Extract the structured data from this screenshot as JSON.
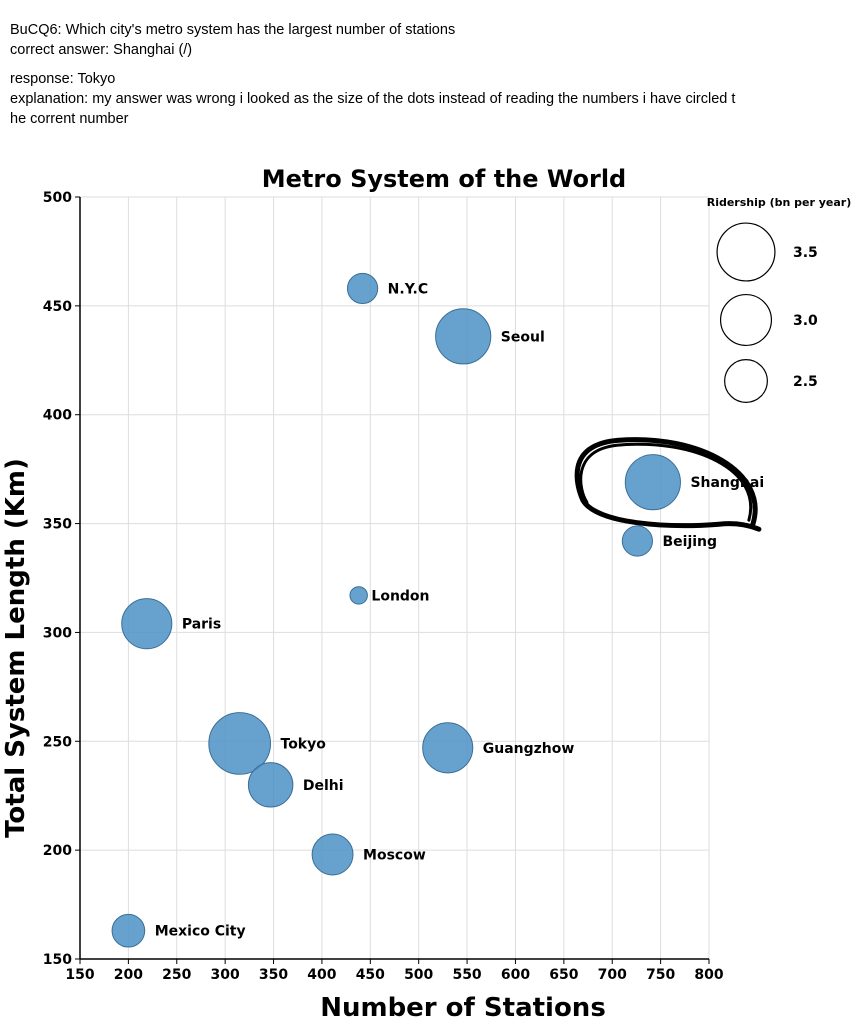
{
  "note": {
    "question": "BuCQ6: Which city's metro system has the largest number of stations",
    "correct_answer": "correct answer: Shanghai (/)",
    "response": "response: Tokyo",
    "explanation": "explanation: my answer was wrong i looked as the size of the dots instead of reading the numbers i have circled t",
    "explanation_cont": "he corrent number"
  },
  "colors": {
    "point_fill": "#4c92c7",
    "point_stroke": "#3a6f96",
    "grid": "#dddddd",
    "axis": "#000000",
    "annotation": "#000000"
  },
  "chart_data": {
    "type": "scatter",
    "title": "Metro System of the World",
    "xlabel": "Number of Stations",
    "ylabel": "Total System Length (Km)",
    "xlim": [
      150,
      800
    ],
    "ylim": [
      150,
      500
    ],
    "xticks": [
      150,
      200,
      250,
      300,
      350,
      400,
      450,
      500,
      550,
      600,
      650,
      700,
      750,
      800
    ],
    "yticks": [
      150,
      200,
      250,
      300,
      350,
      400,
      450,
      500
    ],
    "grid": true,
    "size_legend": {
      "title": "Ridership (bn per year)",
      "placement": "top-right",
      "entries": [
        {
          "label": "3.5",
          "value": 3.5
        },
        {
          "label": "3.0",
          "value": 3.0
        },
        {
          "label": "2.5",
          "value": 2.5
        }
      ]
    },
    "points": [
      {
        "name": "N.Y.C",
        "x": 442,
        "y": 458,
        "ridership": 1.9,
        "label_side": "right"
      },
      {
        "name": "Seoul",
        "x": 546,
        "y": 436,
        "ridership": 3.3,
        "label_side": "right"
      },
      {
        "name": "Shanghai",
        "x": 742,
        "y": 369,
        "ridership": 3.3,
        "label_side": "right"
      },
      {
        "name": "Beijing",
        "x": 726,
        "y": 342,
        "ridership": 1.9,
        "label_side": "right"
      },
      {
        "name": "London",
        "x": 438,
        "y": 317,
        "ridership": 1.5,
        "label_side": "right"
      },
      {
        "name": "Paris",
        "x": 219,
        "y": 304,
        "ridership": 2.95,
        "label_side": "right"
      },
      {
        "name": "Tokyo",
        "x": 315,
        "y": 249,
        "ridership": 3.8,
        "label_side": "right"
      },
      {
        "name": "Delhi",
        "x": 347,
        "y": 230,
        "ridership": 2.6,
        "label_side": "right"
      },
      {
        "name": "Guangzhow",
        "x": 530,
        "y": 247,
        "ridership": 2.95,
        "label_side": "right"
      },
      {
        "name": "Moscow",
        "x": 411,
        "y": 198,
        "ridership": 2.4,
        "label_side": "right"
      },
      {
        "name": "Mexico City",
        "x": 200,
        "y": 163,
        "ridership": 2.0,
        "label_side": "right"
      }
    ],
    "annotation": {
      "type": "hand-drawn-circle",
      "target": "Shanghai"
    }
  }
}
